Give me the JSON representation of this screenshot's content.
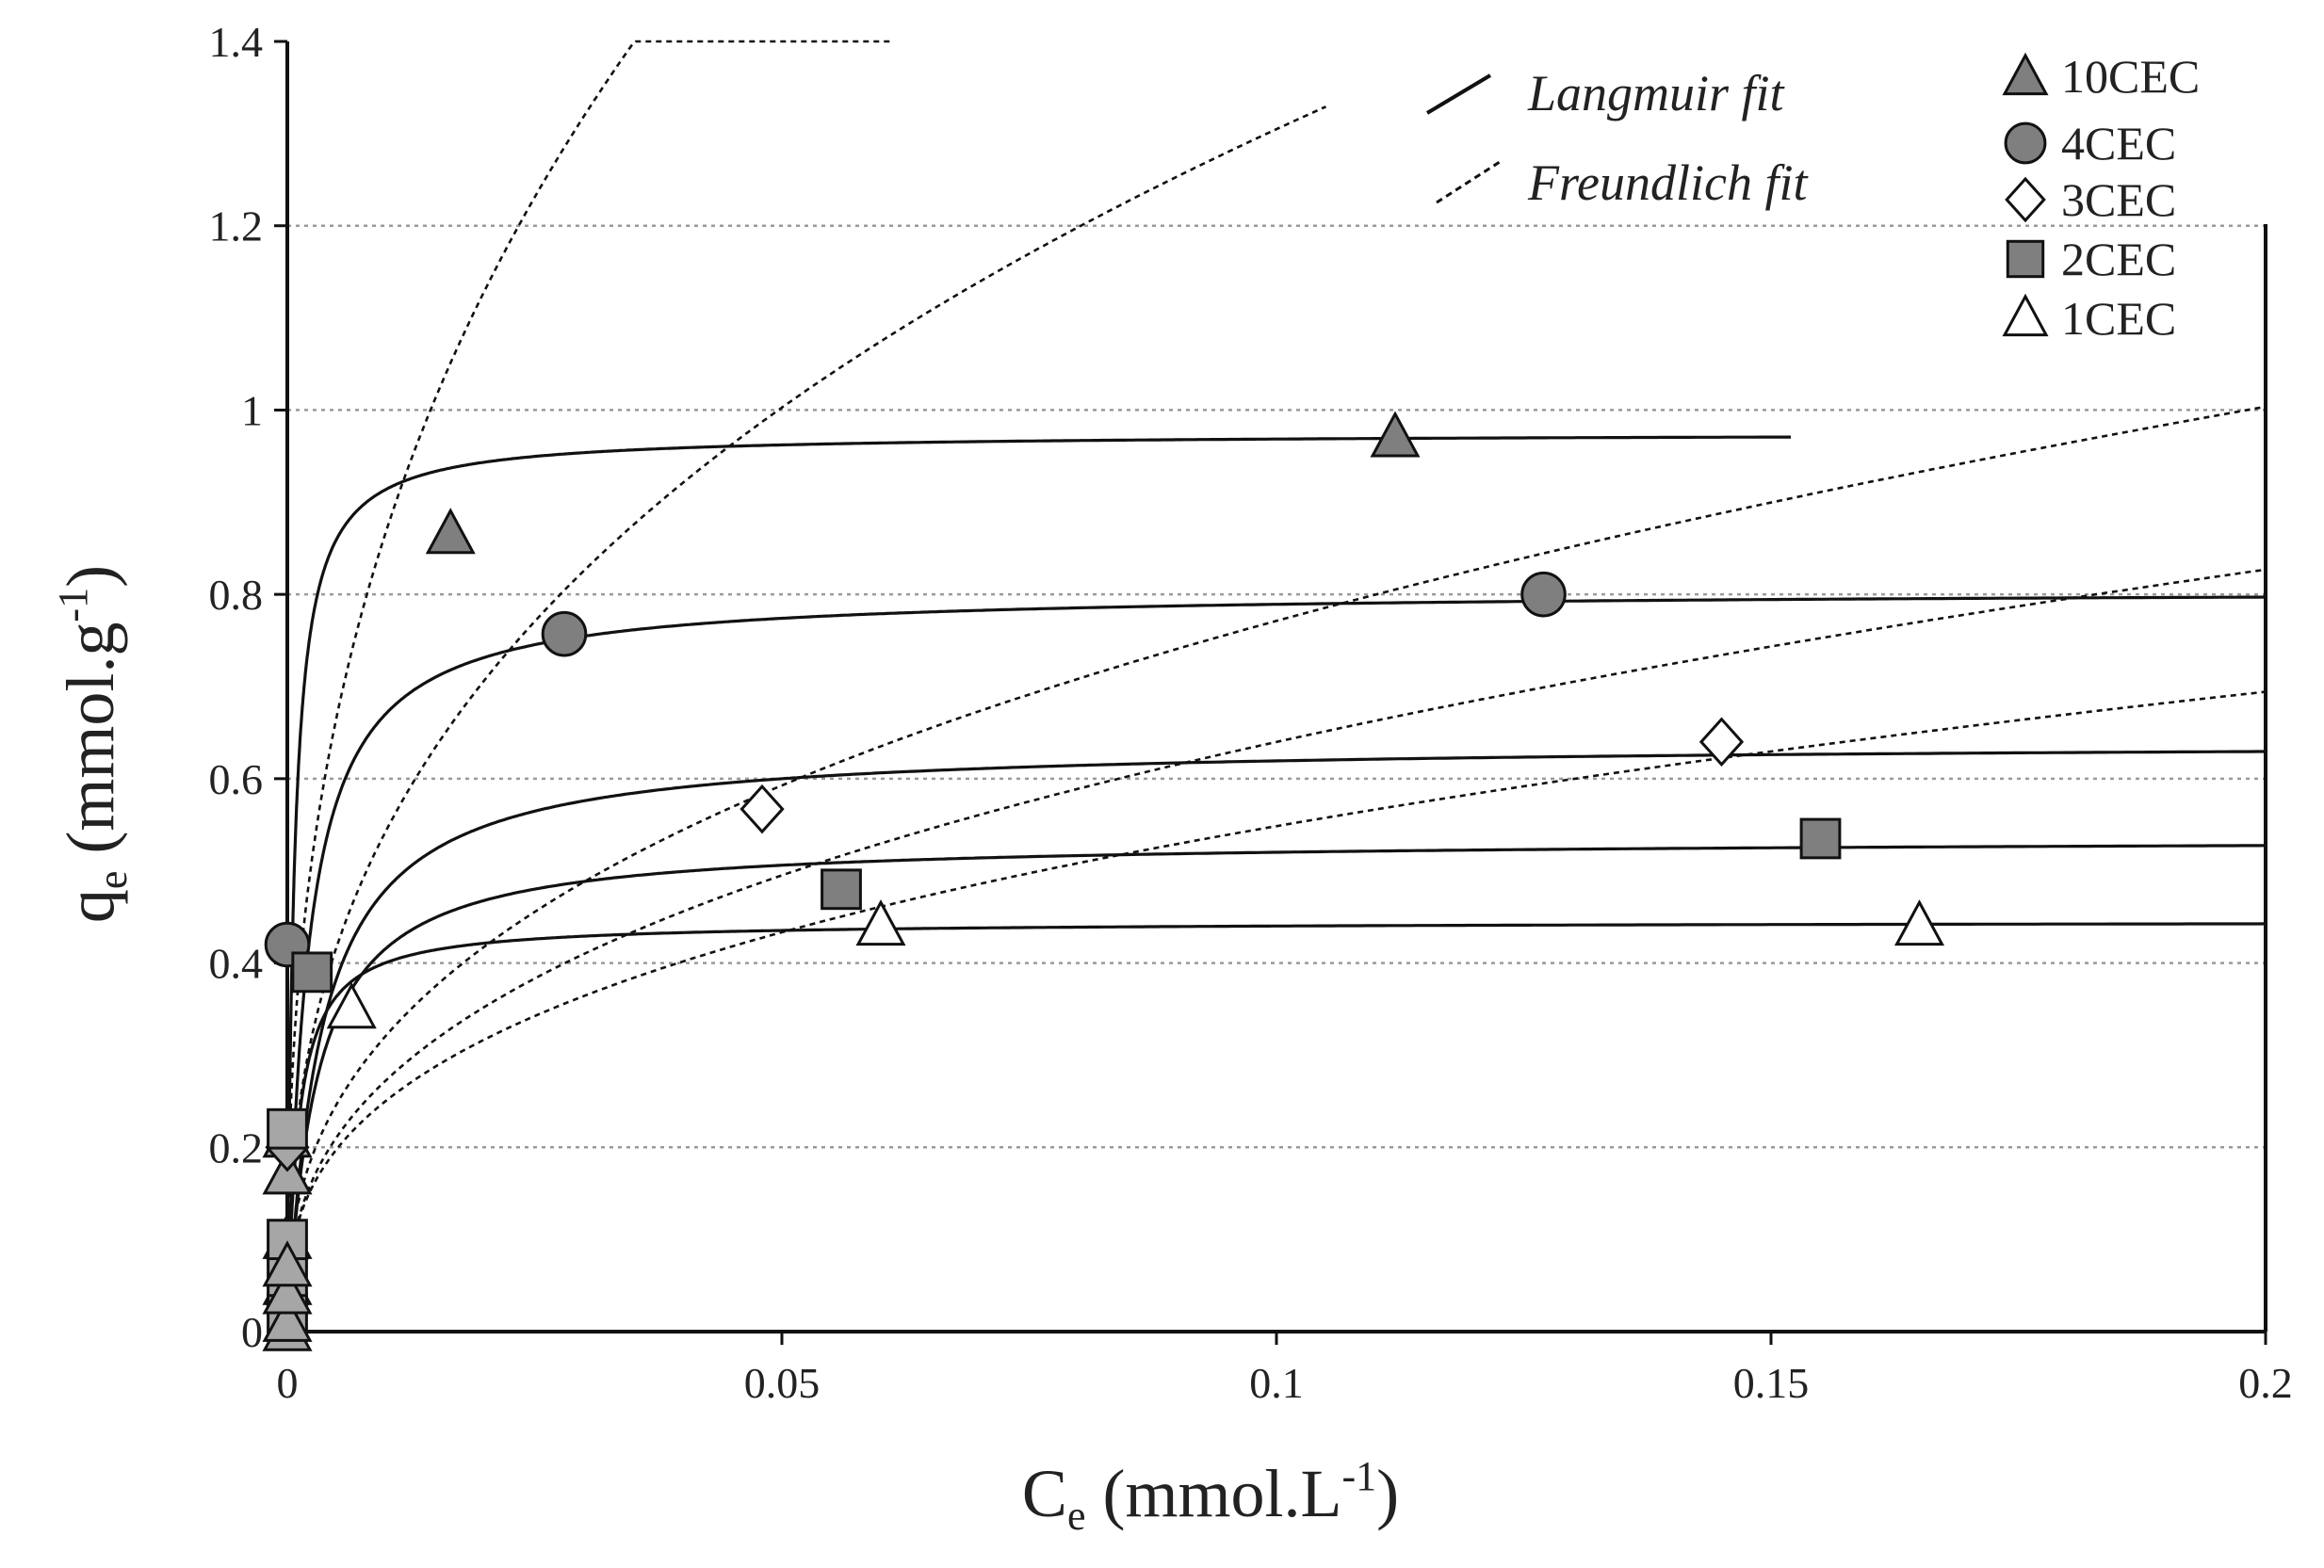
{
  "chart_data": {
    "type": "scatter",
    "title": "",
    "xlabel": {
      "main": "C",
      "sub": "e",
      "rest": " (mmol.L",
      "sup": "-1",
      "close": ")"
    },
    "ylabel": {
      "main": "q",
      "sub": "e",
      "rest": " (mmol.g",
      "sup": "-1",
      "close": ")"
    },
    "xlim": [
      0,
      0.2
    ],
    "ylim": [
      0,
      1.4
    ],
    "xticks": [
      0,
      0.05,
      0.1,
      0.15,
      0.2
    ],
    "xtick_labels": [
      "0",
      "0.05",
      "0.1",
      "0.15",
      "0.2"
    ],
    "yticks": [
      0,
      0.2,
      0.4,
      0.6,
      0.8,
      1,
      1.2,
      1.4
    ],
    "ytick_labels": [
      "0",
      "0.2",
      "0.4",
      "0.6",
      "0.8",
      "1",
      "1.2",
      "1.4"
    ],
    "grid": "horizontal-dotted",
    "legend_position": "top-right",
    "fit_legend": [
      {
        "label": "Langmuir fit",
        "style": "solid"
      },
      {
        "label": "Freundlich fit",
        "style": "dotted"
      }
    ],
    "series": [
      {
        "name": "10CEC",
        "marker": "triangle",
        "fill": "#7f7f7f",
        "points": [
          [
            0,
            0
          ],
          [
            0,
            0.05
          ],
          [
            0,
            0.1
          ],
          [
            0,
            0.17
          ],
          [
            0,
            0.21
          ],
          [
            0.0165,
            0.865
          ],
          [
            0.112,
            0.97
          ]
        ],
        "langmuir": {
          "qmax": 0.975,
          "KL": 1500,
          "xmax": 0.152
        },
        "freundlich": {
          "KF": 5.0,
          "n": 0.38,
          "xmax": 0.061
        }
      },
      {
        "name": "4CEC",
        "marker": "circle",
        "fill": "#7f7f7f",
        "points": [
          [
            0,
            0.42
          ],
          [
            0.028,
            0.757
          ],
          [
            0.127,
            0.8
          ]
        ],
        "langmuir": {
          "qmax": 0.805,
          "KL": 500,
          "xmax": 0.2
        },
        "freundlich": {
          "KF": 3.13,
          "n": 0.38,
          "xmax": 0.105
        }
      },
      {
        "name": "3CEC",
        "marker": "diamond",
        "fill": "#ffffff",
        "points": [
          [
            0,
            0.03
          ],
          [
            0,
            0.08
          ],
          [
            0,
            0.2
          ],
          [
            0.048,
            0.567
          ],
          [
            0.145,
            0.64
          ]
        ],
        "langmuir": {
          "qmax": 0.64,
          "KL": 300,
          "xmax": 0.2
        },
        "freundlich": {
          "KF": 1.85,
          "n": 0.38,
          "xmax": 0.2
        }
      },
      {
        "name": "2CEC",
        "marker": "square",
        "fill": "#7f7f7f",
        "points": [
          [
            0,
            0.02
          ],
          [
            0,
            0.06
          ],
          [
            0,
            0.1
          ],
          [
            0,
            0.22
          ],
          [
            0.0025,
            0.39
          ],
          [
            0.056,
            0.48
          ],
          [
            0.155,
            0.535
          ]
        ],
        "langmuir": {
          "qmax": 0.535,
          "KL": 350,
          "xmax": 0.2
        },
        "freundlich": {
          "KF": 1.5,
          "n": 0.37,
          "xmax": 0.2
        }
      },
      {
        "name": "1CEC",
        "marker": "triangle",
        "fill": "#ffffff",
        "points": [
          [
            0,
            0.01
          ],
          [
            0,
            0.04
          ],
          [
            0,
            0.07
          ],
          [
            0.0065,
            0.35
          ],
          [
            0.06,
            0.44
          ],
          [
            0.165,
            0.44
          ]
        ],
        "langmuir": {
          "qmax": 0.445,
          "KL": 900,
          "xmax": 0.2
        },
        "freundlich": {
          "KF": 1.2,
          "n": 0.34,
          "xmax": 0.2
        }
      }
    ]
  }
}
